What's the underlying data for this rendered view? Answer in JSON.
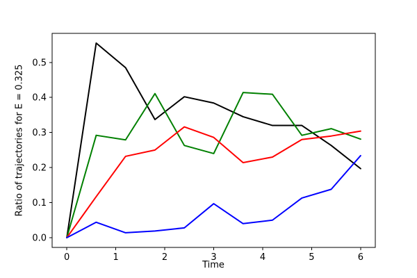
{
  "figure": {
    "background": "#ffffff",
    "plot_background": "#ffffff",
    "axis_color": "#000000",
    "tick_label_color": "#000000"
  },
  "chart_data": {
    "type": "line",
    "title": "",
    "xlabel": "Time",
    "ylabel": "Ratio of trajectories for E = 0.325",
    "grid": false,
    "legend": null,
    "xlim": [
      -0.3,
      6.3
    ],
    "ylim": [
      -0.0278,
      0.5828
    ],
    "xticks": [
      0,
      1,
      2,
      3,
      4,
      5,
      6
    ],
    "xticklabels": [
      "0",
      "1",
      "2",
      "3",
      "4",
      "5",
      "6"
    ],
    "yticks": [
      0.0,
      0.1,
      0.2,
      0.3,
      0.4,
      0.5
    ],
    "yticklabels": [
      "0.0",
      "0.1",
      "0.2",
      "0.3",
      "0.4",
      "0.5"
    ],
    "x": [
      0.0,
      0.6,
      1.2,
      1.8,
      2.4,
      3.0,
      3.6,
      4.2,
      4.8,
      5.4,
      6.0
    ],
    "series": [
      {
        "name": "black",
        "color": "#000000",
        "values": [
          0.0,
          0.555,
          0.485,
          0.337,
          0.402,
          0.384,
          0.345,
          0.32,
          0.32,
          0.263,
          0.197
        ]
      },
      {
        "name": "green",
        "color": "#008000",
        "values": [
          0.0,
          0.292,
          0.279,
          0.411,
          0.263,
          0.24,
          0.414,
          0.409,
          0.292,
          0.311,
          0.281
        ]
      },
      {
        "name": "red",
        "color": "#ff0000",
        "values": [
          0.0,
          0.117,
          0.232,
          0.25,
          0.316,
          0.286,
          0.214,
          0.23,
          0.28,
          0.29,
          0.304
        ]
      },
      {
        "name": "blue",
        "color": "#0000ff",
        "values": [
          0.0,
          0.044,
          0.014,
          0.019,
          0.028,
          0.097,
          0.04,
          0.05,
          0.113,
          0.138,
          0.234
        ]
      }
    ]
  }
}
